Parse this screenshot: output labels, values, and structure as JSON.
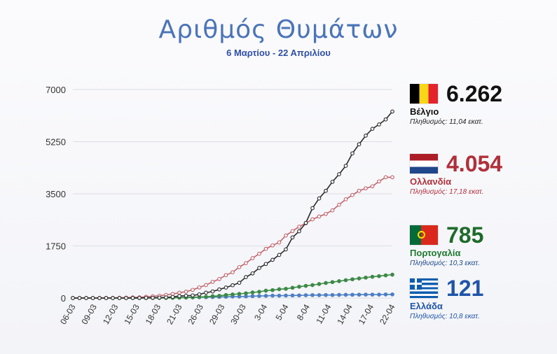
{
  "header": {
    "title": "Αριθμός Θυμάτων",
    "subtitle": "6 Μαρτίου - 22 Απριλίου"
  },
  "legend": [
    {
      "country": "Βέλγιο",
      "value": "6.262",
      "population": "Πληθυσμός: 11,04 εκατ.",
      "color": "#111111",
      "flag": "belgium-flag-icon"
    },
    {
      "country": "Ολλανδία",
      "value": "4.054",
      "population": "Πληθυσμός: 17,18 εκατ.",
      "color": "#b0303a",
      "flag": "netherlands-flag-icon"
    },
    {
      "country": "Πορτογαλία",
      "value": "785",
      "population": "Πληθυσμός: 10,3 εκατ.",
      "color": "#1e7a2e",
      "flag": "portugal-flag-icon"
    },
    {
      "country": "Ελλάδα",
      "value": "121",
      "population": "Πληθυσμός: 10,8 εκατ.",
      "color": "#2d5fa8",
      "flag": "greece-flag-icon"
    }
  ],
  "chart_data": {
    "type": "line",
    "title": "Αριθμός Θυμάτων",
    "subtitle": "6 Μαρτίου - 22 Απριλίου",
    "ylim": [
      0,
      7000
    ],
    "y_ticks": [
      "7000",
      "5250",
      "3500",
      "1750",
      "0"
    ],
    "x_tick_labels": [
      "06-03",
      "09-03",
      "12-03",
      "15-03",
      "18-03",
      "21-03",
      "26-03",
      "29-03",
      "30-03",
      "3-04",
      "5-04",
      "8-04",
      "11-04",
      "14-04",
      "17-04",
      "22-04"
    ],
    "grid": true,
    "legend_position": "right",
    "series": [
      {
        "name": "Βέλγιο",
        "color": "#2b2b2b",
        "marker_fill": "#ffffff",
        "values": [
          0,
          0,
          0,
          0,
          0,
          0,
          0,
          0,
          1,
          3,
          4,
          5,
          10,
          14,
          21,
          37,
          67,
          75,
          88,
          122,
          178,
          220,
          289,
          353,
          431,
          513,
          705,
          828,
          1011,
          1143,
          1283,
          1447,
          1632,
          2035,
          2240,
          2523,
          3019,
          3346,
          3600,
          3903,
          4157,
          4440,
          4857,
          5163,
          5453,
          5683,
          5828,
          5998,
          6262
        ]
      },
      {
        "name": "Ολλανδία",
        "color": "#c0636b",
        "marker_fill": "#ffffff",
        "values": [
          0,
          0,
          0,
          1,
          3,
          4,
          5,
          10,
          12,
          20,
          24,
          43,
          58,
          76,
          106,
          136,
          179,
          213,
          276,
          356,
          434,
          546,
          639,
          771,
          864,
          1039,
          1173,
          1339,
          1487,
          1651,
          1766,
          1867,
          2101,
          2248,
          2396,
          2511,
          2643,
          2737,
          2823,
          2945,
          3134,
          3315,
          3459,
          3601,
          3684,
          3751,
          3916,
          4054,
          4054
        ]
      },
      {
        "name": "Πορτογαλία",
        "color": "#3c8a46",
        "marker_fill": "#3c8a46",
        "values": [
          0,
          0,
          0,
          0,
          0,
          0,
          0,
          0,
          0,
          0,
          0,
          0,
          1,
          2,
          3,
          6,
          12,
          14,
          23,
          33,
          43,
          60,
          76,
          100,
          119,
          140,
          160,
          187,
          209,
          246,
          266,
          295,
          311,
          345,
          380,
          409,
          435,
          470,
          504,
          535,
          567,
          599,
          629,
          657,
          687,
          714,
          735,
          762,
          785
        ]
      },
      {
        "name": "Ελλάδα",
        "color": "#4d7fc4",
        "marker_fill": "#4d7fc4",
        "values": [
          0,
          0,
          0,
          0,
          0,
          0,
          1,
          1,
          1,
          3,
          4,
          5,
          6,
          10,
          13,
          15,
          17,
          20,
          22,
          26,
          28,
          32,
          38,
          43,
          49,
          50,
          53,
          63,
          68,
          73,
          79,
          81,
          83,
          86,
          90,
          93,
          98,
          99,
          101,
          102,
          105,
          108,
          110,
          113,
          114,
          116,
          116,
          119,
          121
        ]
      }
    ]
  }
}
